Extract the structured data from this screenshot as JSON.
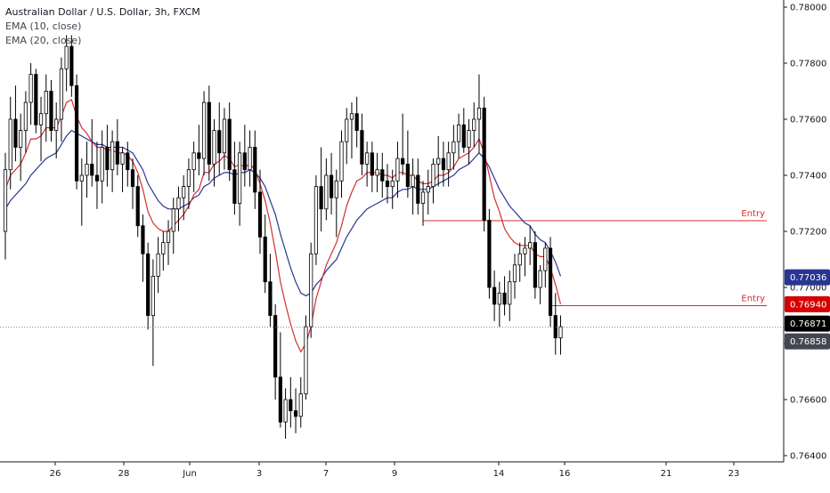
{
  "header": {
    "symbol_line": "Australian Dollar / U.S. Dollar, 3h, FXCM",
    "indicator_1": "EMA (10, close)",
    "indicator_2": "EMA (20, close)"
  },
  "colors": {
    "up_candle": "#ffffff",
    "down_candle": "#000000",
    "candle_outline": "#000000",
    "ema10": "#d32f2f",
    "ema20": "#283593",
    "entry_line": "#d32f2f",
    "tag_ema20": "#283593",
    "tag_ema10": "#d50000",
    "tag_close": "#000000",
    "tag_last": "#434651"
  },
  "chart_data": {
    "type": "candlestick",
    "title": "Australian Dollar / U.S. Dollar, 3h, FXCM",
    "y_range": [
      0.764,
      0.78
    ],
    "y_ticks": [
      "0.78000",
      "0.77800",
      "0.77600",
      "0.77400",
      "0.77200",
      "0.77000",
      "0.76800",
      "0.76600",
      "0.76400"
    ],
    "x_ticks": [
      "26",
      "28",
      "Jun",
      "3",
      "7",
      "9",
      "14",
      "16",
      "21",
      "23"
    ],
    "price_tags": [
      {
        "label": "0.77036",
        "value": 0.77036,
        "series": "ema20"
      },
      {
        "label": "0.76940",
        "value": 0.7694,
        "series": "ema10"
      },
      {
        "label": "0.76871",
        "value": 0.76871,
        "series": "close"
      },
      {
        "label": "0.76858",
        "value": 0.76858,
        "series": "last"
      }
    ],
    "horizontal_lines": [
      {
        "label": "Entry",
        "value": 0.77238,
        "from_index": 82
      },
      {
        "label": "Entry",
        "value": 0.76935,
        "from_index": 107
      }
    ],
    "ohlc": [
      [
        0.772,
        0.7748,
        0.771,
        0.7742
      ],
      [
        0.7742,
        0.7768,
        0.7735,
        0.776
      ],
      [
        0.776,
        0.7772,
        0.7745,
        0.775
      ],
      [
        0.775,
        0.7762,
        0.7738,
        0.7756
      ],
      [
        0.7756,
        0.777,
        0.7748,
        0.7766
      ],
      [
        0.7766,
        0.778,
        0.7758,
        0.7776
      ],
      [
        0.7776,
        0.7778,
        0.7755,
        0.7758
      ],
      [
        0.7758,
        0.7768,
        0.7745,
        0.7762
      ],
      [
        0.7762,
        0.7776,
        0.7752,
        0.777
      ],
      [
        0.777,
        0.7774,
        0.7752,
        0.7756
      ],
      [
        0.7756,
        0.7766,
        0.7746,
        0.776
      ],
      [
        0.776,
        0.7782,
        0.7752,
        0.7778
      ],
      [
        0.7778,
        0.779,
        0.777,
        0.7786
      ],
      [
        0.7786,
        0.779,
        0.7768,
        0.7772
      ],
      [
        0.7772,
        0.7776,
        0.7735,
        0.7738
      ],
      [
        0.7738,
        0.7746,
        0.7722,
        0.774
      ],
      [
        0.774,
        0.7752,
        0.7732,
        0.7744
      ],
      [
        0.7744,
        0.776,
        0.7736,
        0.774
      ],
      [
        0.774,
        0.7752,
        0.7728,
        0.7738
      ],
      [
        0.7738,
        0.7756,
        0.773,
        0.775
      ],
      [
        0.775,
        0.7758,
        0.7736,
        0.7742
      ],
      [
        0.7742,
        0.7756,
        0.7734,
        0.7752
      ],
      [
        0.7752,
        0.776,
        0.774,
        0.7744
      ],
      [
        0.7744,
        0.775,
        0.7734,
        0.7748
      ],
      [
        0.7748,
        0.7752,
        0.7736,
        0.7742
      ],
      [
        0.7742,
        0.7746,
        0.7728,
        0.7736
      ],
      [
        0.7736,
        0.774,
        0.7718,
        0.7722
      ],
      [
        0.7722,
        0.7726,
        0.7702,
        0.7712
      ],
      [
        0.7712,
        0.7716,
        0.7685,
        0.769
      ],
      [
        0.769,
        0.771,
        0.7672,
        0.7704
      ],
      [
        0.7704,
        0.7718,
        0.7698,
        0.7712
      ],
      [
        0.7712,
        0.772,
        0.7706,
        0.7716
      ],
      [
        0.7716,
        0.7724,
        0.7708,
        0.772
      ],
      [
        0.772,
        0.7732,
        0.7712,
        0.7728
      ],
      [
        0.7728,
        0.7736,
        0.772,
        0.7732
      ],
      [
        0.7732,
        0.774,
        0.7724,
        0.7736
      ],
      [
        0.7736,
        0.7746,
        0.7728,
        0.7742
      ],
      [
        0.7742,
        0.7752,
        0.7734,
        0.7748
      ],
      [
        0.7748,
        0.7758,
        0.774,
        0.7746
      ],
      [
        0.7746,
        0.777,
        0.774,
        0.7766
      ],
      [
        0.7766,
        0.7772,
        0.7738,
        0.7744
      ],
      [
        0.7744,
        0.776,
        0.7736,
        0.7756
      ],
      [
        0.7756,
        0.7766,
        0.774,
        0.7748
      ],
      [
        0.7748,
        0.7764,
        0.7742,
        0.776
      ],
      [
        0.776,
        0.7766,
        0.7738,
        0.7742
      ],
      [
        0.7742,
        0.7752,
        0.7726,
        0.773
      ],
      [
        0.773,
        0.7752,
        0.7722,
        0.7748
      ],
      [
        0.7748,
        0.7758,
        0.7736,
        0.7742
      ],
      [
        0.7742,
        0.7756,
        0.7736,
        0.775
      ],
      [
        0.775,
        0.7756,
        0.7728,
        0.7734
      ],
      [
        0.7734,
        0.7742,
        0.7712,
        0.7718
      ],
      [
        0.7718,
        0.7726,
        0.7698,
        0.7702
      ],
      [
        0.7702,
        0.7712,
        0.7686,
        0.769
      ],
      [
        0.769,
        0.7694,
        0.766,
        0.7668
      ],
      [
        0.7668,
        0.7684,
        0.765,
        0.7652
      ],
      [
        0.7652,
        0.7664,
        0.7646,
        0.766
      ],
      [
        0.766,
        0.7668,
        0.765,
        0.7656
      ],
      [
        0.7656,
        0.7664,
        0.7648,
        0.7654
      ],
      [
        0.7654,
        0.7668,
        0.765,
        0.7662
      ],
      [
        0.7662,
        0.769,
        0.766,
        0.7686
      ],
      [
        0.7686,
        0.7716,
        0.7682,
        0.7712
      ],
      [
        0.7712,
        0.774,
        0.7708,
        0.7736
      ],
      [
        0.7736,
        0.775,
        0.772,
        0.7728
      ],
      [
        0.7728,
        0.7746,
        0.7724,
        0.774
      ],
      [
        0.774,
        0.7748,
        0.7726,
        0.7732
      ],
      [
        0.7732,
        0.7742,
        0.7718,
        0.7738
      ],
      [
        0.7738,
        0.7756,
        0.7732,
        0.7752
      ],
      [
        0.7752,
        0.7764,
        0.7744,
        0.776
      ],
      [
        0.776,
        0.7766,
        0.7746,
        0.7762
      ],
      [
        0.7762,
        0.7768,
        0.775,
        0.7756
      ],
      [
        0.7756,
        0.7762,
        0.774,
        0.7744
      ],
      [
        0.7744,
        0.7752,
        0.7736,
        0.7748
      ],
      [
        0.7748,
        0.7752,
        0.7734,
        0.774
      ],
      [
        0.774,
        0.7748,
        0.7734,
        0.7742
      ],
      [
        0.7742,
        0.7748,
        0.7732,
        0.7738
      ],
      [
        0.7738,
        0.7744,
        0.773,
        0.7736
      ],
      [
        0.7736,
        0.7742,
        0.7728,
        0.7738
      ],
      [
        0.7738,
        0.7752,
        0.7732,
        0.7746
      ],
      [
        0.7746,
        0.7762,
        0.774,
        0.7744
      ],
      [
        0.7744,
        0.7756,
        0.7732,
        0.7736
      ],
      [
        0.7736,
        0.7746,
        0.7726,
        0.774
      ],
      [
        0.774,
        0.7746,
        0.7726,
        0.773
      ],
      [
        0.773,
        0.7738,
        0.7722,
        0.7734
      ],
      [
        0.7734,
        0.7742,
        0.7726,
        0.7736
      ],
      [
        0.7736,
        0.7746,
        0.773,
        0.7744
      ],
      [
        0.7744,
        0.7754,
        0.7736,
        0.7746
      ],
      [
        0.7746,
        0.7752,
        0.7736,
        0.7742
      ],
      [
        0.7742,
        0.7752,
        0.7736,
        0.7748
      ],
      [
        0.7748,
        0.7758,
        0.7742,
        0.7752
      ],
      [
        0.7752,
        0.7762,
        0.7746,
        0.7758
      ],
      [
        0.7758,
        0.7764,
        0.7748,
        0.775
      ],
      [
        0.775,
        0.776,
        0.7744,
        0.7756
      ],
      [
        0.7756,
        0.7766,
        0.775,
        0.776
      ],
      [
        0.776,
        0.7776,
        0.7748,
        0.7764
      ],
      [
        0.7764,
        0.7768,
        0.772,
        0.7724
      ],
      [
        0.7724,
        0.7728,
        0.7696,
        0.77
      ],
      [
        0.77,
        0.7706,
        0.7688,
        0.7694
      ],
      [
        0.7694,
        0.7702,
        0.7686,
        0.7698
      ],
      [
        0.7698,
        0.7704,
        0.769,
        0.7694
      ],
      [
        0.7694,
        0.7706,
        0.7688,
        0.7702
      ],
      [
        0.7702,
        0.7712,
        0.7696,
        0.7708
      ],
      [
        0.7708,
        0.7716,
        0.7702,
        0.7712
      ],
      [
        0.7712,
        0.7718,
        0.7704,
        0.7714
      ],
      [
        0.7714,
        0.7722,
        0.7708,
        0.7716
      ],
      [
        0.7716,
        0.772,
        0.7696,
        0.77
      ],
      [
        0.77,
        0.7708,
        0.7694,
        0.7706
      ],
      [
        0.7706,
        0.7716,
        0.77,
        0.7714
      ],
      [
        0.7714,
        0.7718,
        0.7686,
        0.769
      ],
      [
        0.769,
        0.7698,
        0.7676,
        0.7682
      ],
      [
        0.7682,
        0.769,
        0.7676,
        0.7686
      ]
    ],
    "ema10": [
      0.7735,
      0.774,
      0.7742,
      0.7744,
      0.7748,
      0.7753,
      0.7753,
      0.7754,
      0.7757,
      0.7757,
      0.7757,
      0.7761,
      0.7766,
      0.7767,
      0.7761,
      0.7757,
      0.7755,
      0.7752,
      0.775,
      0.775,
      0.7749,
      0.7749,
      0.7748,
      0.7748,
      0.7747,
      0.7745,
      0.7741,
      0.7735,
      0.7727,
      0.7723,
      0.7721,
      0.772,
      0.772,
      0.7722,
      0.7724,
      0.7726,
      0.7729,
      0.7733,
      0.7735,
      0.7741,
      0.7741,
      0.7744,
      0.7745,
      0.7747,
      0.7746,
      0.7743,
      0.7744,
      0.7743,
      0.7744,
      0.7742,
      0.7737,
      0.7731,
      0.7723,
      0.7713,
      0.7702,
      0.7694,
      0.7687,
      0.7681,
      0.7677,
      0.768,
      0.7686,
      0.7696,
      0.7702,
      0.7708,
      0.7712,
      0.7716,
      0.7722,
      0.7729,
      0.7734,
      0.7738,
      0.7739,
      0.7741,
      0.7741,
      0.7741,
      0.774,
      0.774,
      0.7739,
      0.7741,
      0.7741,
      0.774,
      0.774,
      0.7738,
      0.7737,
      0.7737,
      0.7738,
      0.774,
      0.774,
      0.7741,
      0.7743,
      0.7746,
      0.7747,
      0.7748,
      0.775,
      0.7753,
      0.7748,
      0.774,
      0.7732,
      0.7727,
      0.7721,
      0.7718,
      0.7716,
      0.7715,
      0.7715,
      0.7715,
      0.7712,
      0.7711,
      0.7711,
      0.7707,
      0.7701,
      0.7694
    ],
    "ema20": [
      0.7728,
      0.7731,
      0.7733,
      0.7735,
      0.7737,
      0.774,
      0.7742,
      0.7744,
      0.7746,
      0.7747,
      0.7748,
      0.7751,
      0.7754,
      0.7756,
      0.7755,
      0.7754,
      0.7753,
      0.7752,
      0.7751,
      0.7751,
      0.775,
      0.775,
      0.775,
      0.775,
      0.7749,
      0.7748,
      0.7745,
      0.7742,
      0.7737,
      0.7734,
      0.7731,
      0.7729,
      0.7728,
      0.7728,
      0.7728,
      0.7729,
      0.773,
      0.7732,
      0.7733,
      0.7736,
      0.7737,
      0.7739,
      0.774,
      0.7741,
      0.7741,
      0.774,
      0.7741,
      0.7741,
      0.7742,
      0.7741,
      0.7739,
      0.7736,
      0.7731,
      0.7726,
      0.7719,
      0.7713,
      0.7707,
      0.7702,
      0.7698,
      0.7697,
      0.7698,
      0.7701,
      0.7703,
      0.7706,
      0.7708,
      0.771,
      0.7714,
      0.7718,
      0.7721,
      0.7724,
      0.7726,
      0.7728,
      0.7729,
      0.773,
      0.7731,
      0.7732,
      0.7732,
      0.7734,
      0.7735,
      0.7735,
      0.7736,
      0.7735,
      0.7735,
      0.7735,
      0.7736,
      0.7737,
      0.7738,
      0.7739,
      0.774,
      0.7742,
      0.7743,
      0.7744,
      0.7746,
      0.7748,
      0.7746,
      0.7743,
      0.7739,
      0.7735,
      0.7732,
      0.7729,
      0.7727,
      0.7725,
      0.7723,
      0.7722,
      0.7719,
      0.7717,
      0.7716,
      0.7713,
      0.7709,
      0.7704
    ]
  }
}
